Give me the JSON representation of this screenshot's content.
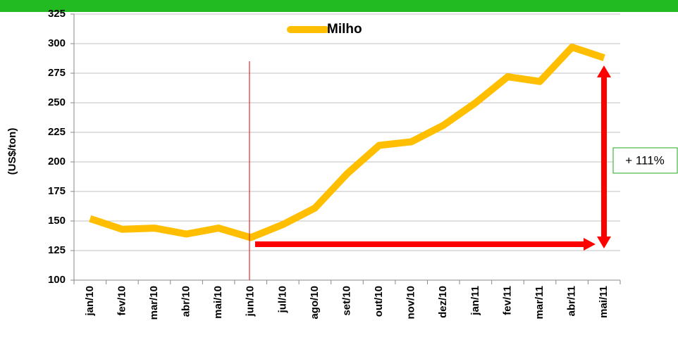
{
  "chart_data": {
    "type": "line",
    "y_label": "(US$/ton)",
    "categories": [
      "jan/10",
      "fev/10",
      "mar/10",
      "abr/10",
      "mai/10",
      "jun/10",
      "jul/10",
      "ago/10",
      "set/10",
      "out/10",
      "nov/10",
      "dez/10",
      "jan/11",
      "fev/11",
      "mar/11",
      "abr/11",
      "mai/11"
    ],
    "series": [
      {
        "name": "Milho",
        "color": "#ffbf00",
        "values": [
          152,
          143,
          144,
          139,
          144,
          136,
          147,
          161,
          190,
          214,
          217,
          231,
          250,
          272,
          268,
          297,
          288
        ]
      }
    ],
    "ylim": [
      100,
      325
    ],
    "yticks": [
      100,
      125,
      150,
      175,
      200,
      225,
      250,
      275,
      300,
      325
    ],
    "grid": true,
    "legend": "top",
    "annotation": "+ 111%"
  }
}
